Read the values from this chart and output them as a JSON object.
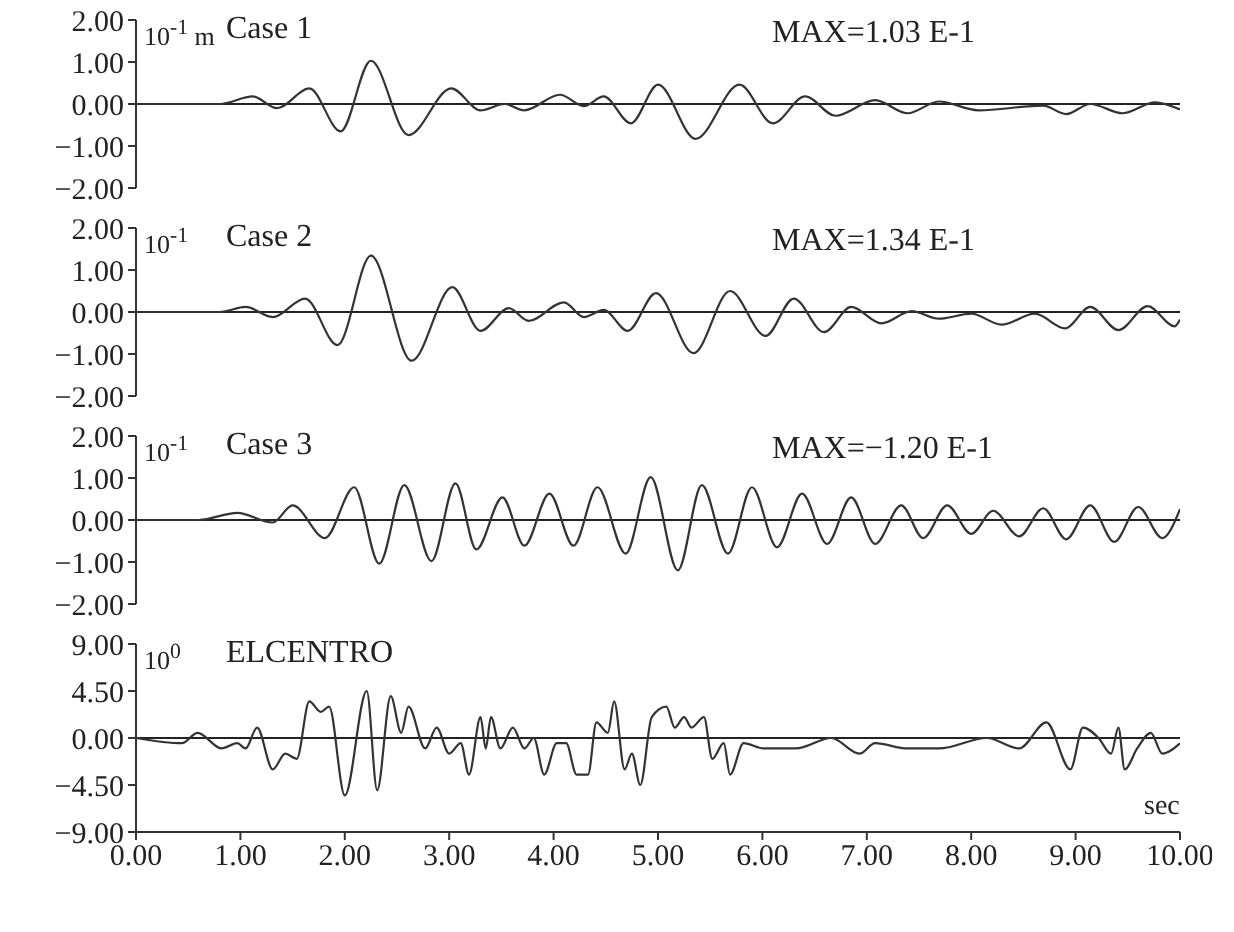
{
  "chart_data": [
    {
      "type": "line",
      "ylabel": "10$^{-1}$ m",
      "annotations": [
        "Case 1",
        "MAX=1.03 E-1"
      ],
      "tick_labels": "y",
      "marker": "none",
      "line_style": "solid",
      "xlim": [
        0,
        10
      ],
      "ylim": [
        -2,
        2
      ],
      "yticks": [
        {
          "value": -2,
          "label": "−2.00"
        },
        {
          "value": -1,
          "label": "−1.00"
        },
        {
          "value": 0,
          "label": "0.00"
        },
        {
          "value": 1,
          "label": "1.00"
        },
        {
          "value": 2,
          "label": "2.00"
        }
      ],
      "ref_lines": [
        {
          "axis": "y",
          "value": 0,
          "color": "#222222"
        }
      ],
      "series": [
        {
          "color": "#333333",
          "x": [
            0,
            0.8,
            1.12,
            1.35,
            1.66,
            1.96,
            2.25,
            2.61,
            3.02,
            3.3,
            3.53,
            3.72,
            4.06,
            4.29,
            4.48,
            4.74,
            5.0,
            5.36,
            5.78,
            6.1,
            6.41,
            6.7,
            7.08,
            7.39,
            7.69,
            8.07,
            8.69,
            8.91,
            9.14,
            9.45,
            9.76,
            10
          ],
          "values": [
            0,
            0,
            0.18,
            -0.1,
            0.37,
            -0.65,
            1.03,
            -0.74,
            0.37,
            -0.15,
            0,
            -0.15,
            0.22,
            -0.05,
            0.18,
            -0.46,
            0.46,
            -0.83,
            0.46,
            -0.46,
            0.18,
            -0.28,
            0.09,
            -0.22,
            0.06,
            -0.15,
            -0.04,
            -0.24,
            0,
            -0.22,
            0.04,
            -0.13
          ]
        }
      ]
    },
    {
      "type": "line",
      "ylabel": "10$^{-1}$",
      "annotations": [
        "Case 2",
        "MAX=1.34 E-1"
      ],
      "tick_labels": "y",
      "marker": "none",
      "line_style": "solid",
      "xlim": [
        0,
        10
      ],
      "ylim": [
        -2,
        2
      ],
      "yticks": [
        {
          "value": -2,
          "label": "−2.00"
        },
        {
          "value": -1,
          "label": "−1.00"
        },
        {
          "value": 0,
          "label": "0.00"
        },
        {
          "value": 1,
          "label": "1.00"
        },
        {
          "value": 2,
          "label": "2.00"
        }
      ],
      "ref_lines": [
        {
          "axis": "y",
          "value": 0,
          "color": "#222222"
        }
      ],
      "series": [
        {
          "color": "#333333",
          "x": [
            0,
            0.8,
            1.05,
            1.31,
            1.62,
            1.93,
            2.25,
            2.64,
            3.03,
            3.3,
            3.57,
            3.76,
            4.1,
            4.29,
            4.48,
            4.71,
            4.98,
            5.34,
            5.69,
            6.03,
            6.3,
            6.59,
            6.85,
            7.14,
            7.43,
            7.69,
            8.0,
            8.29,
            8.61,
            8.9,
            9.14,
            9.41,
            9.69,
            9.95,
            10
          ],
          "values": [
            0,
            0,
            0.12,
            -0.12,
            0.32,
            -0.79,
            1.34,
            -1.16,
            0.59,
            -0.45,
            0.09,
            -0.21,
            0.23,
            -0.12,
            0.05,
            -0.45,
            0.45,
            -0.98,
            0.5,
            -0.57,
            0.32,
            -0.48,
            0.12,
            -0.27,
            0.02,
            -0.16,
            -0.04,
            -0.3,
            -0.04,
            -0.39,
            0.12,
            -0.43,
            0.14,
            -0.34,
            -0.18
          ]
        }
      ]
    },
    {
      "type": "line",
      "ylabel": "10$^{-1}$",
      "annotations": [
        "Case 3",
        "MAX=−1.20 E-1"
      ],
      "tick_labels": "y",
      "marker": "none",
      "line_style": "solid",
      "xlim": [
        0,
        10
      ],
      "ylim": [
        -2,
        2
      ],
      "yticks": [
        {
          "value": -2,
          "label": "−2.00"
        },
        {
          "value": -1,
          "label": "−1.00"
        },
        {
          "value": 0,
          "label": "0.00"
        },
        {
          "value": 1,
          "label": "1.00"
        },
        {
          "value": 2,
          "label": "2.00"
        }
      ],
      "ref_lines": [
        {
          "axis": "y",
          "value": 0,
          "color": "#222222"
        }
      ],
      "series": [
        {
          "color": "#333333",
          "x": [
            0,
            0.6,
            0.97,
            1.31,
            1.5,
            1.81,
            2.09,
            2.33,
            2.57,
            2.83,
            3.06,
            3.26,
            3.51,
            3.72,
            3.96,
            4.19,
            4.42,
            4.69,
            4.93,
            5.19,
            5.42,
            5.67,
            5.9,
            6.14,
            6.38,
            6.62,
            6.85,
            7.08,
            7.33,
            7.54,
            7.77,
            8.0,
            8.21,
            8.46,
            8.69,
            8.91,
            9.14,
            9.37,
            9.6,
            9.83,
            10
          ],
          "values": [
            0,
            0,
            0.17,
            -0.06,
            0.35,
            -0.43,
            0.78,
            -1.04,
            0.83,
            -0.98,
            0.87,
            -0.7,
            0.54,
            -0.61,
            0.63,
            -0.61,
            0.78,
            -0.8,
            1.02,
            -1.2,
            0.83,
            -0.8,
            0.78,
            -0.65,
            0.63,
            -0.57,
            0.54,
            -0.57,
            0.35,
            -0.43,
            0.35,
            -0.33,
            0.22,
            -0.39,
            0.28,
            -0.46,
            0.35,
            -0.52,
            0.31,
            -0.43,
            0.26
          ]
        }
      ]
    },
    {
      "type": "line",
      "ylabel": "10$^{0}$",
      "xlabel": "sec",
      "annotations": [
        "ELCENTRO"
      ],
      "marker": "none",
      "line_style": "solid",
      "xlim": [
        0,
        10
      ],
      "xticks": [
        {
          "value": 0,
          "label": "0.00"
        },
        {
          "value": 1,
          "label": "1.00"
        },
        {
          "value": 2,
          "label": "2.00"
        },
        {
          "value": 3,
          "label": "3.00"
        },
        {
          "value": 4,
          "label": "4.00"
        },
        {
          "value": 5,
          "label": "5.00"
        },
        {
          "value": 6,
          "label": "6.00"
        },
        {
          "value": 7,
          "label": "7.00"
        },
        {
          "value": 8,
          "label": "8.00"
        },
        {
          "value": 9,
          "label": "9.00"
        },
        {
          "value": 10,
          "label": "10.00"
        }
      ],
      "ylim": [
        -9,
        9
      ],
      "yticks": [
        {
          "value": -9,
          "label": "−9.00"
        },
        {
          "value": -4.5,
          "label": "−4.50"
        },
        {
          "value": 0,
          "label": "0.00"
        },
        {
          "value": 4.5,
          "label": "4.50"
        },
        {
          "value": 9,
          "label": "9.00"
        }
      ],
      "ref_lines": [
        {
          "axis": "y",
          "value": 0,
          "color": "#222222"
        }
      ],
      "series": [
        {
          "color": "#333333",
          "x": [
            0,
            0.44,
            0.59,
            0.82,
            0.97,
            1.05,
            1.16,
            1.31,
            1.43,
            1.54,
            1.66,
            1.77,
            1.85,
            2.0,
            2.21,
            2.31,
            2.44,
            2.54,
            2.61,
            2.77,
            2.88,
            3.0,
            3.11,
            3.19,
            3.3,
            3.35,
            3.4,
            3.49,
            3.61,
            3.72,
            3.81,
            3.91,
            4.03,
            4.12,
            4.22,
            4.33,
            4.41,
            4.52,
            4.58,
            4.68,
            4.75,
            4.83,
            4.94,
            5.08,
            5.16,
            5.25,
            5.32,
            5.44,
            5.52,
            5.63,
            5.69,
            5.82,
            6.01,
            6.32,
            6.66,
            6.93,
            7.08,
            7.39,
            7.69,
            8.15,
            8.46,
            8.72,
            8.95,
            9.07,
            9.22,
            9.34,
            9.41,
            9.47,
            9.59,
            9.72,
            9.83,
            10
          ],
          "values": [
            0,
            -0.5,
            0.5,
            -1,
            -0.5,
            -1,
            1,
            -3,
            -1.5,
            -2,
            3.5,
            2.5,
            3,
            -5.5,
            4.5,
            -5,
            4,
            0.5,
            3,
            -1,
            1,
            -1.5,
            -0.5,
            -3.5,
            2,
            -1,
            2,
            -1,
            1,
            -1,
            0,
            -3.5,
            -0.5,
            -0.5,
            -3.5,
            -3.5,
            1.5,
            0.5,
            3.5,
            -3,
            -1.5,
            -4.5,
            2,
            3,
            1,
            2,
            1,
            2,
            -2,
            -0.5,
            -3.5,
            -0.5,
            -1,
            -1,
            0,
            -1.5,
            -0.5,
            -1,
            -1,
            0,
            -1,
            1.5,
            -3,
            1,
            0,
            -1.5,
            1,
            -3,
            -1,
            0.5,
            -1.5,
            -0.5
          ]
        }
      ]
    }
  ]
}
